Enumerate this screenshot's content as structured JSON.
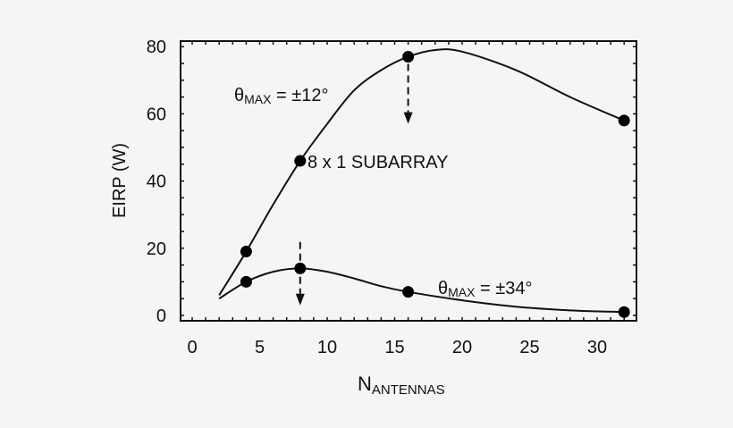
{
  "chart_data": {
    "type": "line",
    "title": "",
    "xlabel": "N",
    "xlabel_subscript": "ANTENNAS",
    "ylabel": "EIRP (W)",
    "xlim": [
      -1,
      33
    ],
    "ylim": [
      -2,
      82
    ],
    "xticks": [
      "0",
      "5",
      "10",
      "15",
      "20",
      "25",
      "30"
    ],
    "yticks": [
      "0",
      "20",
      "40",
      "60",
      "80"
    ],
    "grid": false,
    "series": [
      {
        "name": "θMAX = ±12°",
        "label_main": "θ",
        "label_sub": "MAX",
        "label_rest": " = ±12°",
        "x": [
          4,
          8,
          16,
          32
        ],
        "y": [
          19,
          46,
          77,
          58
        ],
        "curve": [
          [
            2,
            6
          ],
          [
            4,
            19
          ],
          [
            6,
            33
          ],
          [
            8,
            46
          ],
          [
            10,
            57
          ],
          [
            12,
            67
          ],
          [
            14,
            73
          ],
          [
            16,
            77
          ],
          [
            18,
            79
          ],
          [
            20,
            78.5
          ],
          [
            24,
            73
          ],
          [
            28,
            65
          ],
          [
            32,
            58
          ]
        ]
      },
      {
        "name": "θMAX = ±34°",
        "label_main": "θ",
        "label_sub": "MAX",
        "label_rest": " = ±34°",
        "x": [
          4,
          8,
          16,
          32
        ],
        "y": [
          10,
          14,
          7,
          1
        ],
        "curve": [
          [
            2,
            5
          ],
          [
            4,
            10
          ],
          [
            6,
            13
          ],
          [
            8,
            14
          ],
          [
            10,
            13
          ],
          [
            12,
            11
          ],
          [
            14,
            8.7
          ],
          [
            16,
            7
          ],
          [
            20,
            4.5
          ],
          [
            24,
            2.6
          ],
          [
            28,
            1.5
          ],
          [
            32,
            1
          ]
        ]
      }
    ],
    "annotations": [
      {
        "text": "8 x 1 SUBARRAY",
        "x": 8,
        "y": 46
      },
      {
        "type": "dashed-arrow",
        "x": 16,
        "from_y": 77,
        "to_y": 57
      },
      {
        "type": "dashed-arrow",
        "x": 8,
        "from_y": 24,
        "to_y": 3
      }
    ]
  }
}
